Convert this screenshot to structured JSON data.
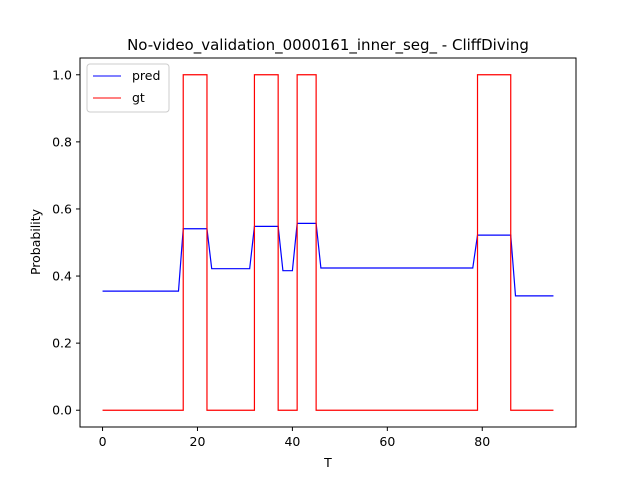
{
  "chart_data": {
    "type": "line",
    "title": "No-video_validation_0000161_inner_seg_ - CliffDiving",
    "xlabel": "T",
    "ylabel": "Probability",
    "xlim": [
      -4.75,
      99.75
    ],
    "ylim": [
      -0.05,
      1.05
    ],
    "xticks": [
      0,
      20,
      40,
      60,
      80
    ],
    "yticks": [
      0.0,
      0.2,
      0.4,
      0.6,
      0.8,
      1.0
    ],
    "xtick_labels": [
      "0",
      "20",
      "40",
      "60",
      "80"
    ],
    "ytick_labels": [
      "0.0",
      "0.2",
      "0.4",
      "0.6",
      "0.8",
      "1.0"
    ],
    "legend_position": "top-left",
    "series": [
      {
        "name": "pred",
        "color": "#0000ff",
        "x": [
          0,
          16,
          17,
          22,
          23,
          31,
          32,
          37,
          38,
          40,
          41,
          45,
          46,
          78,
          79,
          86,
          87,
          95
        ],
        "y": [
          0.355,
          0.355,
          0.541,
          0.541,
          0.422,
          0.422,
          0.548,
          0.548,
          0.416,
          0.416,
          0.557,
          0.557,
          0.424,
          0.424,
          0.522,
          0.522,
          0.341,
          0.341
        ]
      },
      {
        "name": "gt",
        "color": "#ff0000",
        "x": [
          0,
          17,
          17,
          22,
          22,
          32,
          32,
          37,
          37,
          41,
          41,
          45,
          45,
          79,
          79,
          86,
          86,
          95
        ],
        "y": [
          0,
          0,
          1,
          1,
          0,
          0,
          1,
          1,
          0,
          0,
          1,
          1,
          0,
          0,
          1,
          1,
          0,
          0
        ]
      }
    ]
  }
}
